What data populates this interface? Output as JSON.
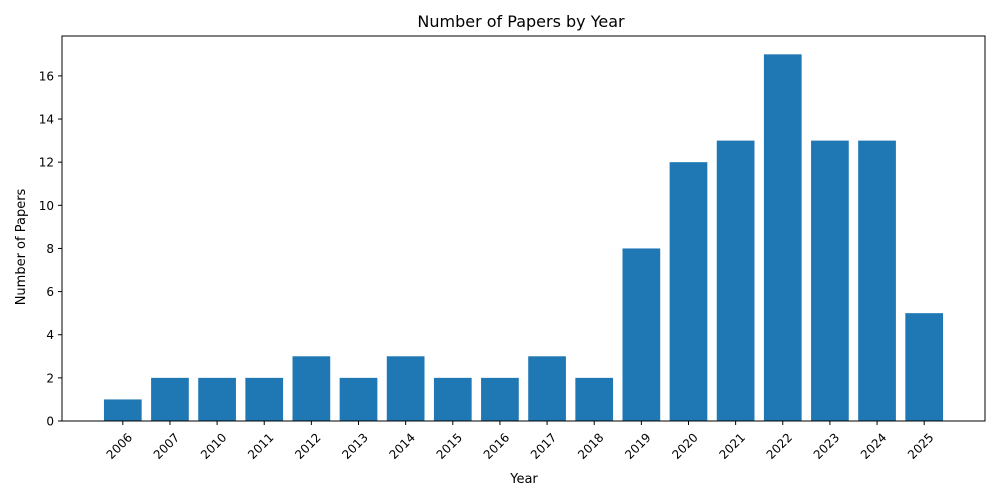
{
  "chart_data": {
    "type": "bar",
    "title": "Number of Papers by Year",
    "xlabel": "Year",
    "ylabel": "Number of Papers",
    "categories": [
      "2006",
      "2007",
      "2010",
      "2011",
      "2012",
      "2013",
      "2014",
      "2015",
      "2016",
      "2017",
      "2018",
      "2019",
      "2020",
      "2021",
      "2022",
      "2023",
      "2024",
      "2025"
    ],
    "values": [
      1,
      2,
      2,
      2,
      3,
      2,
      3,
      2,
      2,
      3,
      2,
      8,
      12,
      13,
      17,
      13,
      13,
      5
    ],
    "ylim": [
      0,
      17.85
    ],
    "yticks": [
      0,
      2,
      4,
      6,
      8,
      10,
      12,
      14,
      16
    ],
    "xtick_rotation_deg": 45,
    "grid": false,
    "legend": "none",
    "colors": {
      "bar": "#1f77b4",
      "axis": "#000000",
      "background": "#ffffff"
    }
  }
}
